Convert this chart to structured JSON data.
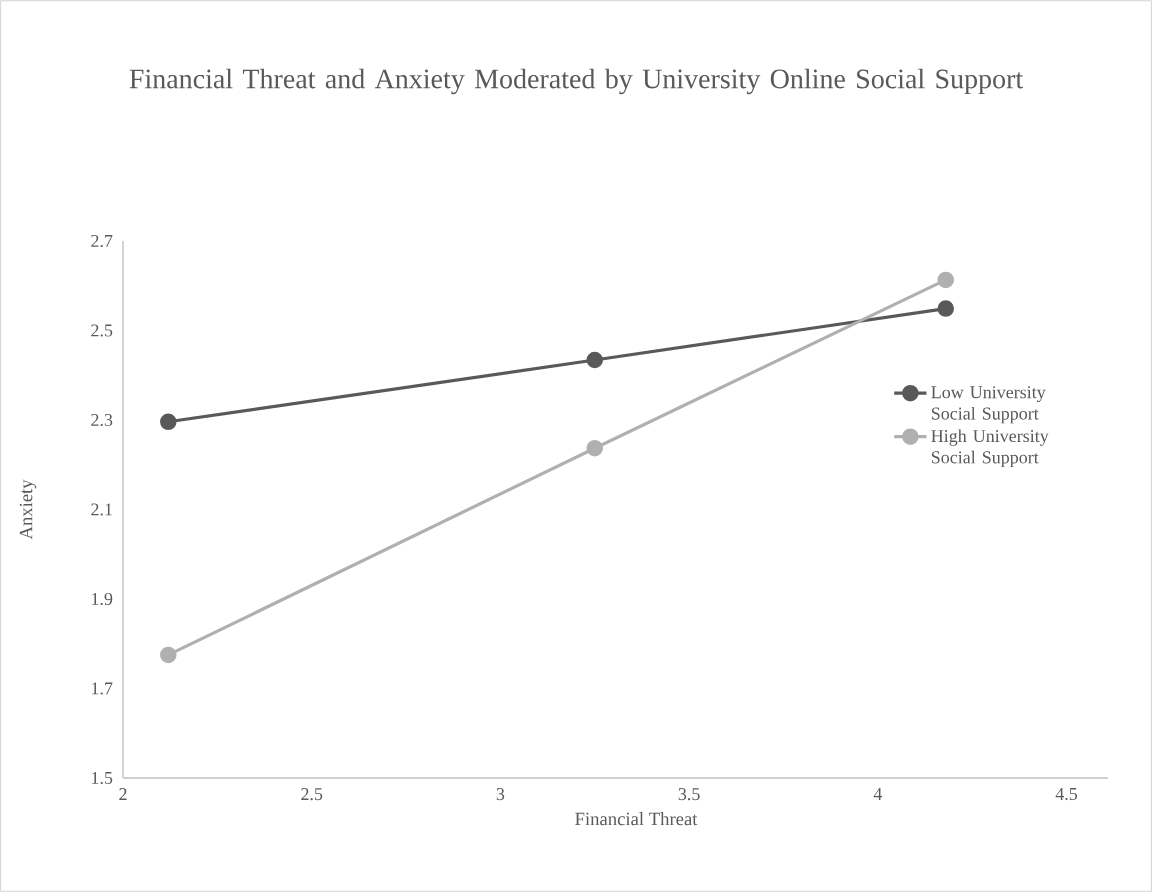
{
  "chart_data": {
    "type": "line",
    "title": "Financial Threat and Anxiety Moderated by University Online Social Support",
    "xlabel": "Financial Threat",
    "ylabel": "Anxiety",
    "x": [
      2.12,
      3.25,
      4.18
    ],
    "series": [
      {
        "name": "Low University Social Support",
        "color": "#595959",
        "values": [
          2.296,
          2.434,
          2.549
        ]
      },
      {
        "name": "High University Social Support",
        "color": "#b0b0b0",
        "values": [
          1.775,
          2.237,
          2.613
        ]
      }
    ],
    "xlim": [
      2,
      4.61
    ],
    "xticks": [
      2,
      2.5,
      3,
      3.5,
      4,
      4.5
    ],
    "ylim": [
      1.5,
      2.7
    ],
    "yticks": [
      1.5,
      1.7,
      1.9,
      2.1,
      2.3,
      2.5,
      2.7
    ],
    "legend": "right",
    "marker": "circle",
    "line_style": "solid"
  }
}
